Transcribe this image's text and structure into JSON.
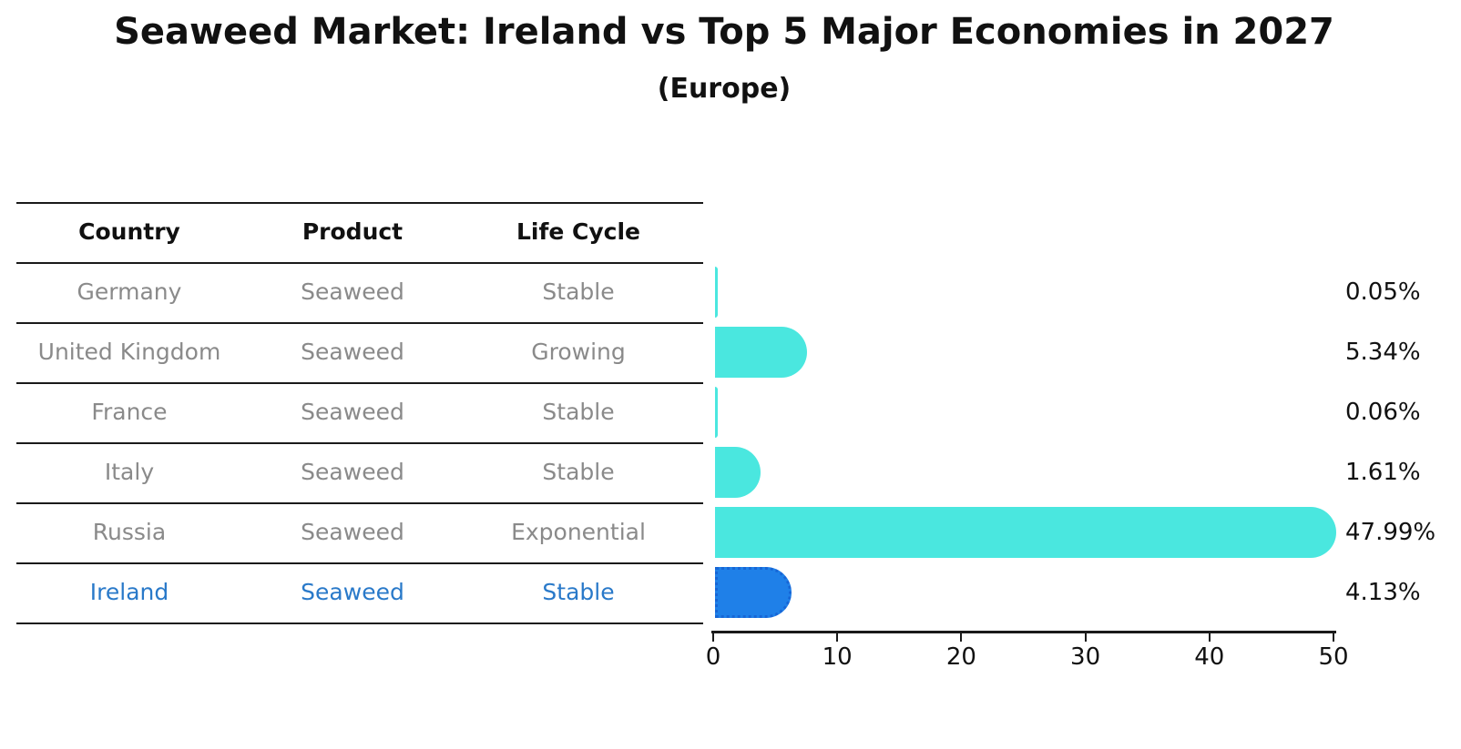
{
  "title": "Seaweed Market: Ireland vs Top 5 Major Economies in 2027",
  "subtitle": "(Europe)",
  "table": {
    "headers": [
      "Country",
      "Product",
      "Life Cycle"
    ],
    "rows": [
      {
        "country": "Germany",
        "product": "Seaweed",
        "life_cycle": "Stable",
        "highlighted": false
      },
      {
        "country": "United Kingdom",
        "product": "Seaweed",
        "life_cycle": "Growing",
        "highlighted": false
      },
      {
        "country": "France",
        "product": "Seaweed",
        "life_cycle": "Stable",
        "highlighted": false
      },
      {
        "country": "Italy",
        "product": "Seaweed",
        "life_cycle": "Stable",
        "highlighted": false
      },
      {
        "country": "Russia",
        "product": "Seaweed",
        "life_cycle": "Exponential",
        "highlighted": false
      },
      {
        "country": "Ireland",
        "product": "Seaweed",
        "life_cycle": "Stable",
        "highlighted": true
      }
    ]
  },
  "chart_data": {
    "type": "bar",
    "orientation": "horizontal",
    "title": "Seaweed Market: Ireland vs Top 5 Major Economies in 2027",
    "subtitle": "(Europe)",
    "categories": [
      "Germany",
      "United Kingdom",
      "France",
      "Italy",
      "Russia",
      "Ireland"
    ],
    "values": [
      0.05,
      5.34,
      0.06,
      1.61,
      47.99,
      4.13
    ],
    "value_labels": [
      "0.05%",
      "5.34%",
      "0.06%",
      "1.61%",
      "47.99%",
      "4.13%"
    ],
    "xlim": [
      0,
      50
    ],
    "x_ticks": [
      0,
      10,
      20,
      30,
      40,
      50
    ],
    "xlabel": "",
    "ylabel": "",
    "grid": false,
    "legend": "none",
    "highlight_index": 5
  },
  "colors": {
    "bar": "#4AE7DF",
    "highlight_bar": "#1F80E8",
    "highlight_border": "#1766D6",
    "highlight_text": "#2979C9",
    "table_text": "#8A8A8A",
    "header_text": "#111111",
    "line": "#1A1A1A",
    "value_text": "#111111"
  }
}
